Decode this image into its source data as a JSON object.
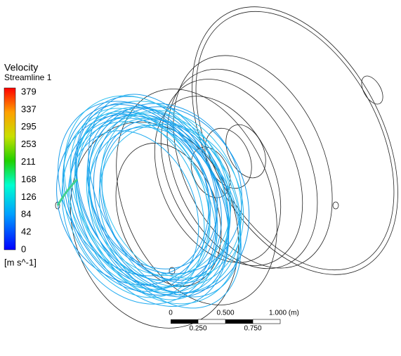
{
  "legend": {
    "title": "Velocity",
    "subtitle": "Streamline 1",
    "ticks": [
      379,
      337,
      295,
      253,
      211,
      168,
      126,
      84,
      42,
      0
    ],
    "unit": "[m s^-1]"
  },
  "scale_bar": {
    "top_labels": [
      "0",
      "0.500",
      "1.000 (m)"
    ],
    "bottom_labels": [
      "0.250",
      "0.750"
    ]
  }
}
